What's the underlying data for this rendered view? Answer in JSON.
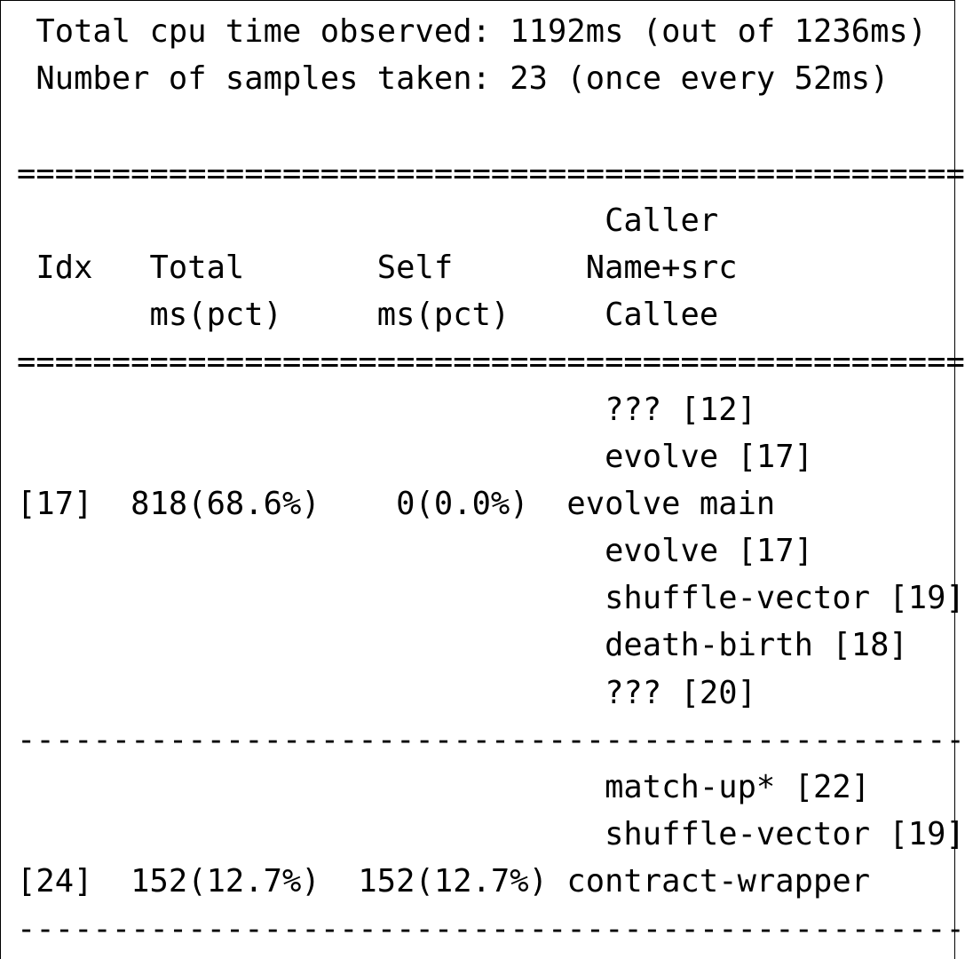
{
  "summary": {
    "total_line": " Total cpu time observed: 1192ms (out of 1236ms)",
    "samples_line": " Number of samples taken: 23 (once every 52ms)"
  },
  "header": {
    "double_rule": "==================================================",
    "caller_line": "                               Caller",
    "name_line": " Idx   Total       Self       Name+src",
    "callee_line": "       ms(pct)     ms(pct)     Callee"
  },
  "entries": [
    {
      "callers": [
        "                               ??? [12]",
        "                               evolve [17]"
      ],
      "main_line": "[17]  818(68.6%)    0(0.0%)  evolve main",
      "callees": [
        "                               evolve [17]",
        "                               shuffle-vector [19]",
        "                               death-birth [18]",
        "                               ??? [20]"
      ]
    },
    {
      "callers": [
        "                               match-up* [22]",
        "                               shuffle-vector [19]"
      ],
      "main_line": "[24]  152(12.7%)  152(12.7%) contract-wrapper",
      "callees": []
    }
  ],
  "single_rule": "--------------------------------------------------"
}
